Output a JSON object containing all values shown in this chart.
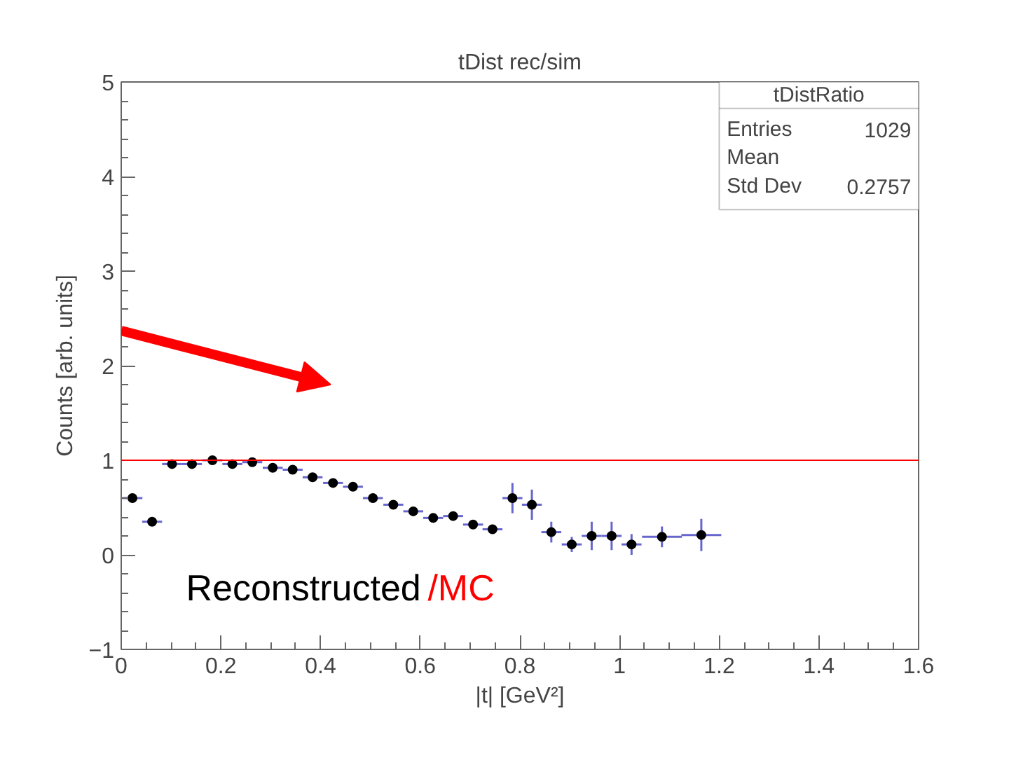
{
  "chart_data": {
    "type": "scatter",
    "title": "tDist rec/sim",
    "xlabel": "|t| [GeV²]",
    "ylabel": "Counts [arb. units]",
    "x": [
      0.0225,
      0.062,
      0.102,
      0.142,
      0.183,
      0.223,
      0.263,
      0.304,
      0.344,
      0.384,
      0.425,
      0.465,
      0.505,
      0.546,
      0.586,
      0.626,
      0.666,
      0.706,
      0.745,
      0.785,
      0.824,
      0.863,
      0.904,
      0.944,
      0.984,
      1.024,
      1.085,
      1.164
    ],
    "values": [
      0.6,
      0.35,
      0.96,
      0.96,
      1.0,
      0.96,
      0.98,
      0.92,
      0.9,
      0.82,
      0.76,
      0.72,
      0.6,
      0.53,
      0.46,
      0.39,
      0.41,
      0.32,
      0.27,
      0.6,
      0.53,
      0.24,
      0.11,
      0.2,
      0.2,
      0.11,
      0.19,
      0.21
    ],
    "errors": [
      null,
      null,
      null,
      null,
      null,
      null,
      null,
      null,
      null,
      null,
      null,
      null,
      null,
      null,
      null,
      null,
      null,
      null,
      null,
      0.16,
      0.16,
      0.11,
      0.08,
      0.15,
      0.15,
      0.11,
      0.11,
      0.17
    ],
    "xerrors": [
      0.02,
      0.02,
      0.02,
      0.02,
      0.02,
      0.02,
      0.02,
      0.02,
      0.02,
      0.02,
      0.02,
      0.02,
      0.02,
      0.02,
      0.02,
      0.02,
      0.02,
      0.02,
      0.02,
      0.02,
      0.02,
      0.02,
      0.02,
      0.02,
      0.02,
      0.02,
      0.04,
      0.04
    ],
    "color": "#000000",
    "marker": "circle",
    "xlim": [
      0,
      1.6
    ],
    "xticks": [
      0,
      0.2,
      0.4,
      0.6,
      0.8,
      1,
      1.2,
      1.4,
      1.6
    ],
    "ylim": [
      -1,
      5
    ],
    "yticks": [
      -1,
      0,
      1,
      2,
      3,
      4,
      5
    ],
    "ref_lines": [
      {
        "axis": "y",
        "value": 1,
        "color": "#ff0000"
      }
    ],
    "grid": false,
    "annotations": [
      "tDistRatio",
      "Entries",
      "1029",
      "Mean",
      "Std Dev",
      "0.2757",
      "Reconstructed",
      "/MC"
    ]
  }
}
